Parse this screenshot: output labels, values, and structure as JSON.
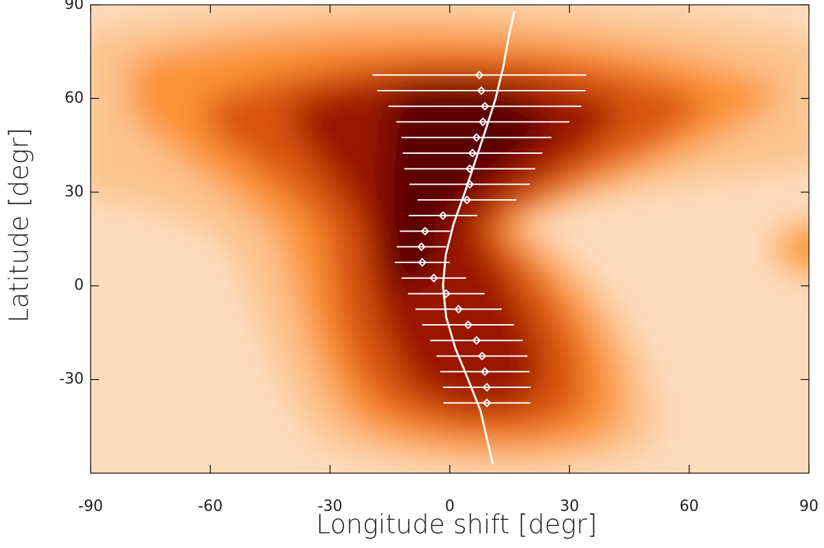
{
  "chart_data": {
    "type": "scatter",
    "xlabel": "Longitude shift [degr]",
    "ylabel": "Latitude [degr]",
    "xlim": [
      -90,
      90
    ],
    "ylim": [
      -60,
      90
    ],
    "xticks": [
      -90,
      -60,
      -30,
      0,
      30,
      60,
      90
    ],
    "yticks": [
      -30,
      0,
      30,
      60,
      90
    ],
    "points": {
      "color": "#ffffff",
      "y": [
        67.5,
        62.5,
        57.5,
        52.5,
        47.5,
        42.5,
        37.5,
        32.5,
        27.5,
        22.5,
        17.5,
        12.5,
        7.5,
        2.5,
        -2.5,
        -7.5,
        -12.5,
        -17.5,
        -22.5,
        -27.5,
        -32.5,
        -37.5
      ],
      "x": [
        7.4,
        7.9,
        8.8,
        8.3,
        6.7,
        5.7,
        5.0,
        5.0,
        4.3,
        -1.7,
        -6.2,
        -7.1,
        -6.9,
        -4.0,
        -0.9,
        2.2,
        4.6,
        6.7,
        8.1,
        8.8,
        9.3,
        9.3
      ],
      "xerr": [
        26.8,
        26.1,
        24.2,
        21.7,
        18.8,
        17.5,
        16.4,
        15.1,
        12.4,
        8.6,
        6.3,
        6.2,
        6.9,
        8.1,
        9.6,
        10.8,
        11.5,
        11.6,
        11.4,
        11.2,
        11.0,
        10.9
      ]
    },
    "curve": {
      "color": "#ffffff",
      "y": [
        88,
        80,
        70,
        60,
        50,
        40,
        30,
        20,
        10,
        0,
        -10,
        -20,
        -30,
        -40,
        -50,
        -57
      ],
      "x": [
        16.2,
        14.8,
        13.4,
        11.5,
        9.0,
        6.4,
        3.8,
        1.0,
        -1.0,
        -1.7,
        -0.9,
        1.4,
        4.6,
        7.7,
        9.5,
        10.8
      ]
    }
  }
}
